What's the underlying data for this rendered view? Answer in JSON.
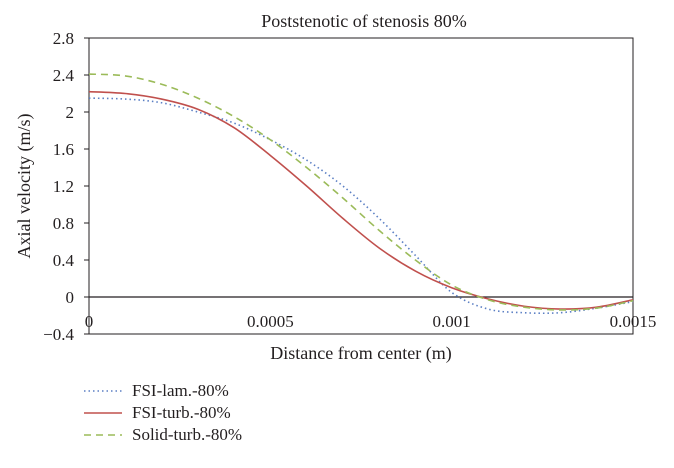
{
  "chart_data": {
    "type": "line",
    "title": "Poststenotic of stenosis 80%",
    "xlabel": "Distance from center (m)",
    "ylabel": "Axial velocity (m/s)",
    "xlim": [
      0,
      0.0015
    ],
    "ylim": [
      -0.4,
      2.8
    ],
    "x_ticks": [
      "0",
      "0.0005",
      "0.001",
      "0.0015"
    ],
    "y_ticks": [
      "2.8",
      "2.4",
      "2",
      "1.6",
      "1.2",
      "0.8",
      "0.4",
      "0",
      "−0.4"
    ],
    "x_tick_values": [
      0,
      0.0005,
      0.001,
      0.0015
    ],
    "y_tick_values": [
      2.8,
      2.4,
      2.0,
      1.6,
      1.2,
      0.8,
      0.4,
      0,
      -0.4
    ],
    "grid": false,
    "legend_position": "bottom-left",
    "series": [
      {
        "name": "FSI-lam.-80%",
        "color": "#5b7fc4",
        "dash": "dotted",
        "x": [
          0,
          0.0001,
          0.0002,
          0.0003,
          0.0004,
          0.0005,
          0.0006,
          0.0007,
          0.0008,
          0.0009,
          0.001,
          0.0011,
          0.0012,
          0.0013,
          0.0014,
          0.0015
        ],
        "y": [
          2.15,
          2.14,
          2.1,
          2.0,
          1.88,
          1.7,
          1.48,
          1.2,
          0.85,
          0.45,
          0.05,
          -0.13,
          -0.17,
          -0.17,
          -0.12,
          -0.05
        ]
      },
      {
        "name": "FSI-turb.-80%",
        "color": "#c0504d",
        "dash": "solid",
        "x": [
          0,
          0.0001,
          0.0002,
          0.0003,
          0.0004,
          0.0005,
          0.0006,
          0.0007,
          0.0008,
          0.0009,
          0.001,
          0.0011,
          0.0012,
          0.0013,
          0.0014,
          0.0015
        ],
        "y": [
          2.22,
          2.2,
          2.14,
          2.03,
          1.83,
          1.53,
          1.2,
          0.85,
          0.53,
          0.28,
          0.1,
          -0.02,
          -0.1,
          -0.13,
          -0.11,
          -0.03
        ]
      },
      {
        "name": "Solid-turb.-80%",
        "color": "#9bbb59",
        "dash": "dashed",
        "x": [
          0,
          0.0001,
          0.0002,
          0.0003,
          0.0004,
          0.0005,
          0.0006,
          0.0007,
          0.0008,
          0.0009,
          0.001,
          0.0011,
          0.0012,
          0.0013,
          0.0014,
          0.0015
        ],
        "y": [
          2.41,
          2.39,
          2.3,
          2.15,
          1.95,
          1.7,
          1.4,
          1.07,
          0.72,
          0.4,
          0.13,
          -0.03,
          -0.11,
          -0.14,
          -0.12,
          -0.04
        ]
      }
    ]
  }
}
